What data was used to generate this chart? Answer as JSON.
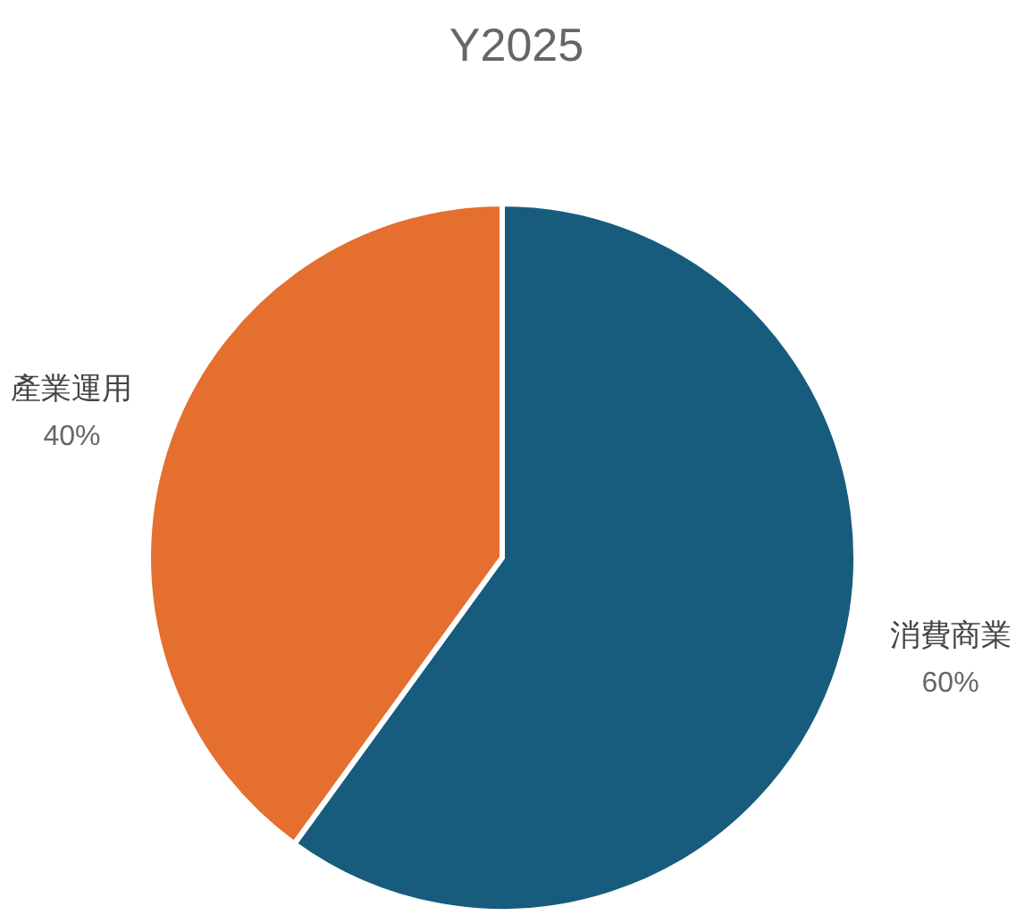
{
  "chart_data": {
    "type": "pie",
    "title": "Y2025",
    "categories": [
      "消費商業",
      "產業運用"
    ],
    "values": [
      60,
      40
    ],
    "colors": [
      "#175c7d",
      "#e46f2f"
    ],
    "value_labels": [
      "60%",
      "40%"
    ]
  }
}
